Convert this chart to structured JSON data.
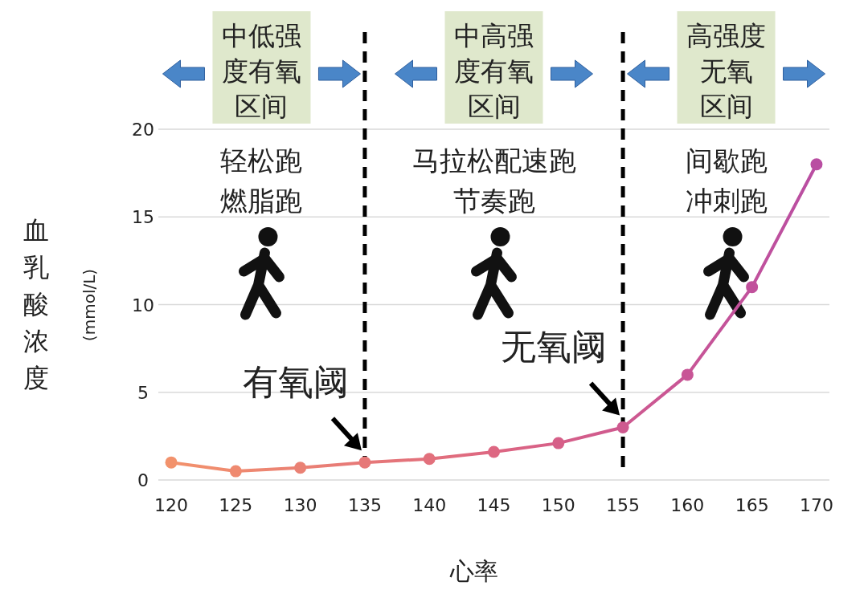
{
  "chart_data": {
    "type": "line",
    "xlabel": "心率",
    "ylabel": "血乳酸浓度",
    "x": [
      120,
      125,
      130,
      135,
      140,
      145,
      150,
      155,
      160,
      165,
      170
    ],
    "series": [
      {
        "values": [
          1.0,
          0.5,
          0.7,
          1.0,
          1.2,
          1.6,
          2.1,
          3.0,
          6.0,
          11.0,
          18.0
        ],
        "colors": [
          "#f2926c",
          "#ef8a70",
          "#ea8174",
          "#e67878",
          "#e2707c",
          "#dd6782",
          "#d65f88",
          "#ce598f",
          "#c85596",
          "#c1519c",
          "#b94ea2"
        ]
      }
    ],
    "xlim": [
      119,
      171
    ],
    "ylim": [
      0,
      20
    ],
    "xticks": [
      120,
      125,
      130,
      135,
      140,
      145,
      150,
      155,
      160,
      165,
      170
    ],
    "yticks": [
      0,
      5,
      10,
      15,
      20
    ],
    "grid": "y",
    "marker": "circle",
    "ref_lines": [
      {
        "axis": "x",
        "value": 135,
        "color": "#000000",
        "line_style": "dashed"
      },
      {
        "axis": "x",
        "value": 155,
        "color": "#000000",
        "line_style": "dashed"
      }
    ],
    "annotations": [
      {
        "text": "有氧阈",
        "x": 135,
        "y": 1
      },
      {
        "text": "无氧阈",
        "x": 155,
        "y": 3
      },
      "中低强度有氧区间",
      "中高强度有氧区间",
      "高强度无氧区间",
      "轻松跑",
      "燃脂跑",
      "马拉松配速跑",
      "节奏跑",
      "间歇跑",
      "冲刺跑",
      "(mmol/L)"
    ]
  }
}
